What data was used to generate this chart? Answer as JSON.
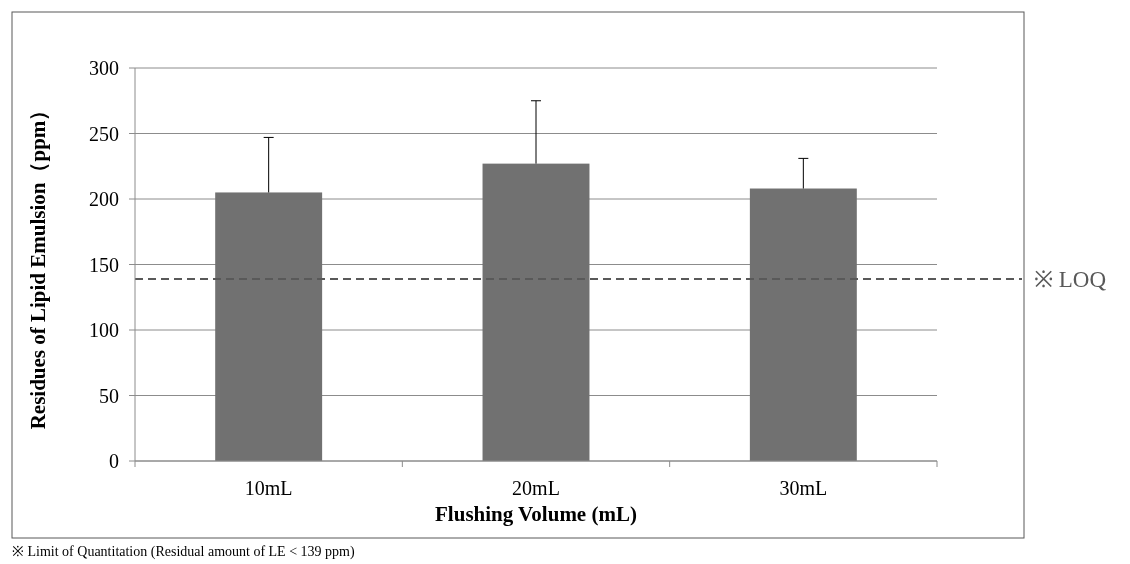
{
  "chart_data": {
    "type": "bar",
    "categories": [
      "10mL",
      "20mL",
      "30mL"
    ],
    "values": [
      205,
      227,
      208
    ],
    "color": "#717171",
    "errors": [
      [
        205,
        247
      ],
      [
        227,
        275
      ],
      [
        208,
        231
      ]
    ],
    "xlabel": "Flushing Volume (mL)",
    "ylabel": "Residues of Lipid Emulsion（ppm）",
    "ylim": [
      0,
      300
    ],
    "yticks": [
      0,
      50,
      100,
      150,
      200,
      250,
      300
    ],
    "grid": "y",
    "ref_lines": [
      {
        "axis": "y",
        "value": 139,
        "label": "※ LOQ",
        "color": "#595959",
        "line_style": "dashed"
      }
    ],
    "annotations": [
      "※ Limit of Quantitation (Residual amount of LE < 139 ppm)"
    ]
  }
}
